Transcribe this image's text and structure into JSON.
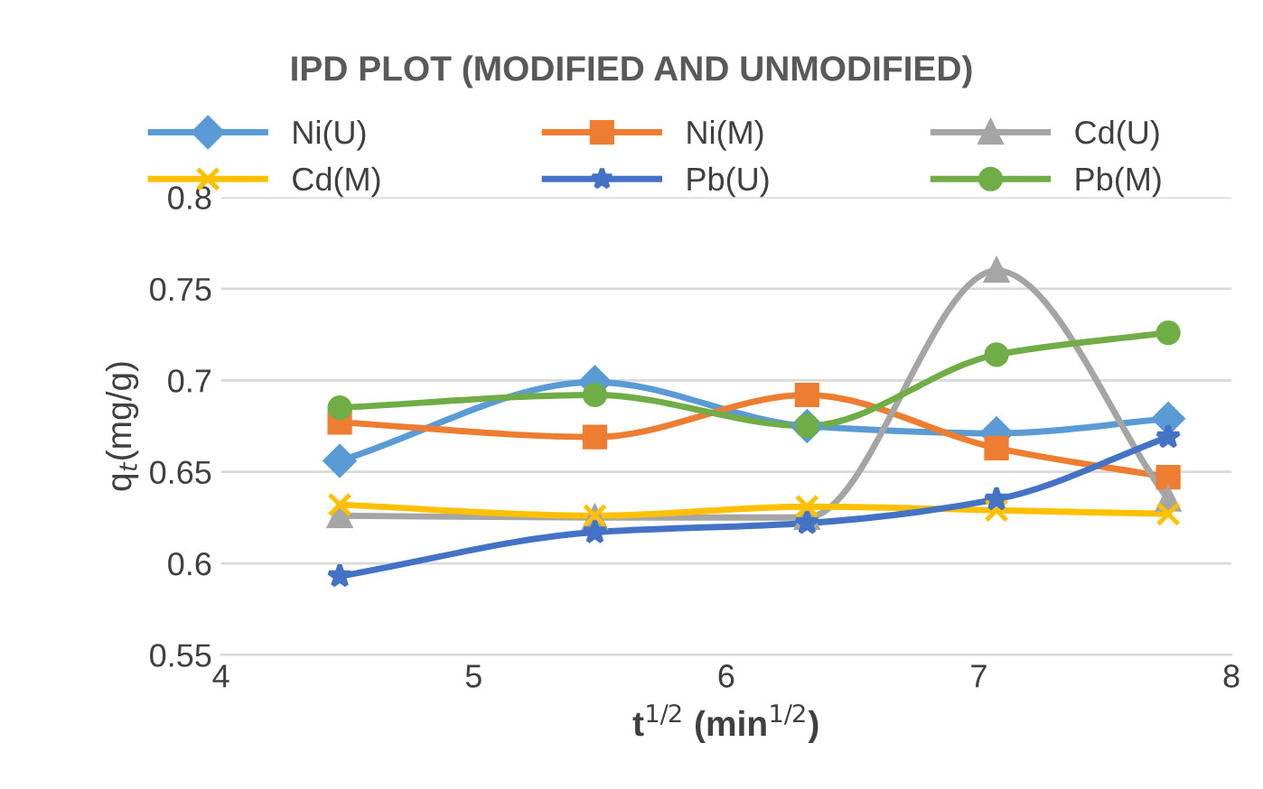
{
  "chart_data": {
    "type": "line",
    "title": "IPD PLOT (MODIFIED AND UNMODIFIED)",
    "xlabel": "t$^{1/2}$ (min$^{1/2}$)",
    "ylabel": "q$_{t}$(mg/g)",
    "x": [
      4.47,
      5.48,
      6.32,
      7.07,
      7.75
    ],
    "series": [
      {
        "name": "Ni(U)",
        "color": "#5b9bd5",
        "marker": "diamond",
        "values": [
          0.656,
          0.699,
          0.675,
          0.671,
          0.679
        ]
      },
      {
        "name": "Ni(M)",
        "color": "#ed7d31",
        "marker": "square",
        "values": [
          0.677,
          0.669,
          0.692,
          0.663,
          0.647
        ]
      },
      {
        "name": "Cd(U)",
        "color": "#a5a5a5",
        "marker": "triangle",
        "values": [
          0.626,
          0.625,
          0.625,
          0.76,
          0.635
        ]
      },
      {
        "name": "Cd(M)",
        "color": "#ffc000",
        "marker": "cross",
        "values": [
          0.632,
          0.626,
          0.631,
          0.629,
          0.627
        ]
      },
      {
        "name": "Pb(U)",
        "color": "#4472c4",
        "marker": "star",
        "values": [
          0.593,
          0.617,
          0.622,
          0.635,
          0.669
        ]
      },
      {
        "name": "Pb(M)",
        "color": "#70ad47",
        "marker": "circle",
        "values": [
          0.685,
          0.692,
          0.675,
          0.714,
          0.726
        ]
      }
    ],
    "xlim": [
      4,
      8
    ],
    "xticks": [
      4,
      5,
      6,
      7,
      8
    ],
    "ylim": [
      0.55,
      0.8
    ],
    "yticks": [
      {
        "value": 0.55,
        "label": "0.55"
      },
      {
        "value": 0.6,
        "label": "0.6"
      },
      {
        "value": 0.65,
        "label": "0.65"
      },
      {
        "value": 0.7,
        "label": "0.7"
      },
      {
        "value": 0.75,
        "label": "0.75"
      },
      {
        "value": 0.8,
        "label": "0.8"
      }
    ],
    "grid": "y",
    "legend": "top",
    "line_style": "solid"
  }
}
